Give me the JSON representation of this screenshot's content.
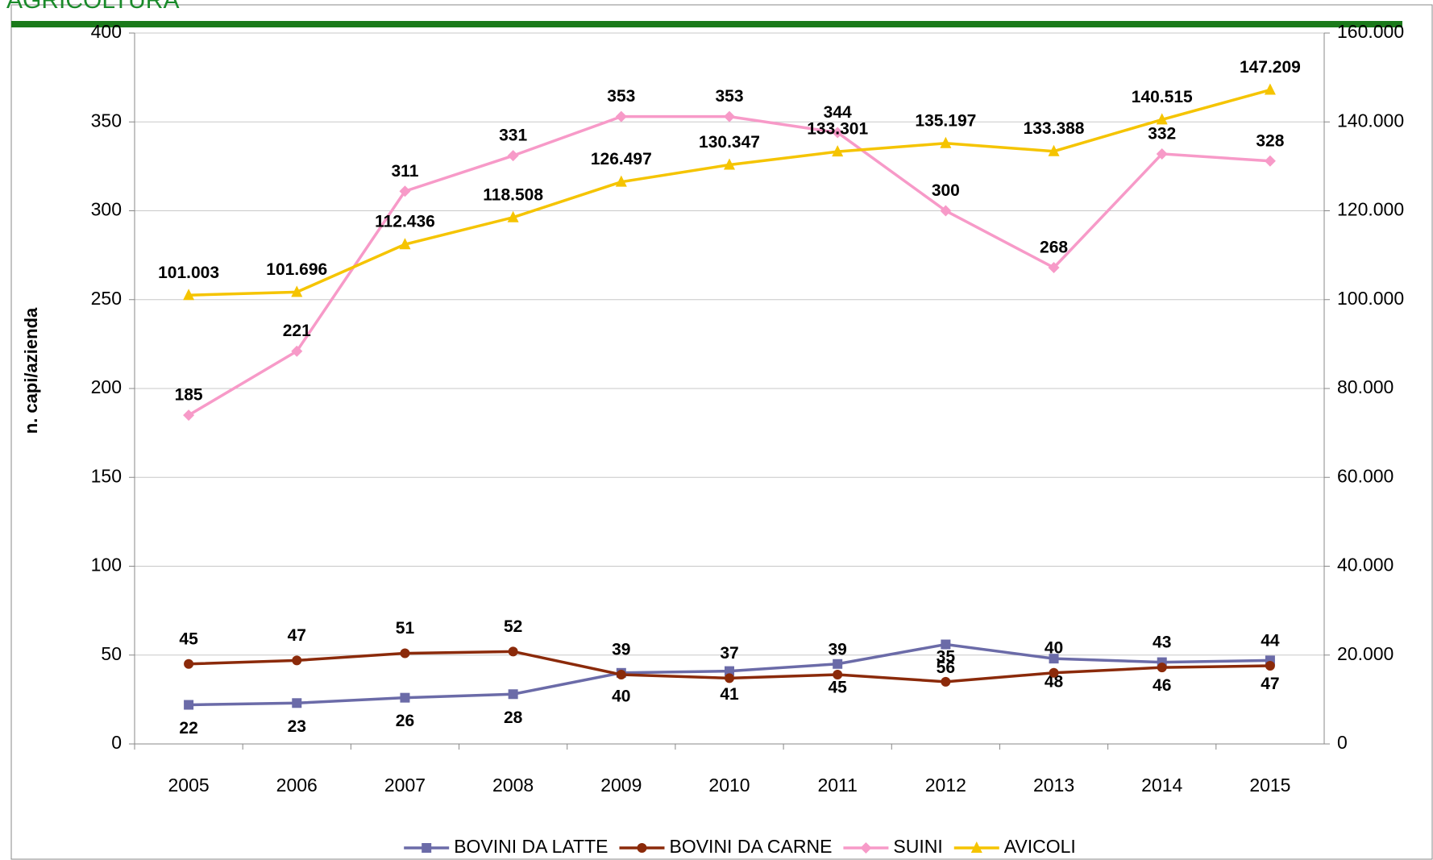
{
  "header": {
    "title": "AGRICOLTURA"
  },
  "chart_data": {
    "type": "line",
    "y_label": "n. capi/azienda",
    "categories": [
      "2005",
      "2006",
      "2007",
      "2008",
      "2009",
      "2010",
      "2011",
      "2012",
      "2013",
      "2014",
      "2015"
    ],
    "series": [
      {
        "name": "BOVINI DA LATTE",
        "color": "#6b6ba8",
        "marker": "square",
        "values": [
          22,
          23,
          26,
          28,
          40,
          41,
          45,
          56,
          48,
          46,
          47
        ]
      },
      {
        "name": "BOVINI DA CARNE",
        "color": "#8b2a0a",
        "marker": "circle",
        "values": [
          45,
          47,
          51,
          52,
          39,
          37,
          39,
          35,
          40,
          43,
          44
        ]
      },
      {
        "name": "SUINI",
        "color": "#f79ac8",
        "marker": "diamond",
        "values": [
          185,
          221,
          311,
          331,
          353,
          353,
          344,
          300,
          268,
          332,
          328
        ]
      },
      {
        "name": "AVICOLI",
        "color": "#f5c400",
        "marker": "triangle",
        "axis": "y2",
        "values": [
          101003,
          101696,
          112436,
          118508,
          126497,
          130347,
          133301,
          135197,
          133388,
          140515,
          147209
        ],
        "value_labels": [
          "101.003",
          "101.696",
          "112.436",
          "118.508",
          "126.497",
          "130.347",
          "133.301",
          "135.197",
          "133.388",
          "140.515",
          "147.209"
        ]
      }
    ],
    "ylim": [
      0,
      400
    ],
    "yticks": [
      0,
      50,
      100,
      150,
      200,
      250,
      300,
      350,
      400
    ],
    "y2lim": [
      0,
      160000
    ],
    "y2ticks": [
      0,
      {
        "value": 20000,
        "label": "20.000"
      },
      {
        "value": 40000,
        "label": "40.000"
      },
      {
        "value": 60000,
        "label": "60.000"
      },
      {
        "value": 80000,
        "label": "80.000"
      },
      {
        "value": 100000,
        "label": "100.000"
      },
      {
        "value": 120000,
        "label": "120.000"
      },
      {
        "value": 140000,
        "label": "140.000"
      },
      {
        "value": 160000,
        "label": "160.000"
      }
    ],
    "grid": true,
    "legend": "bottom"
  }
}
